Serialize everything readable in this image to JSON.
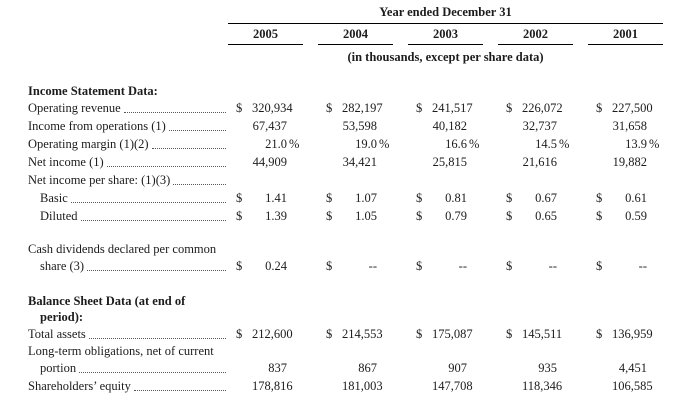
{
  "header": {
    "title": "Year ended December 31",
    "years": [
      "2005",
      "2004",
      "2003",
      "2002",
      "2001"
    ],
    "subtitle": "(in thousands, except per share data)"
  },
  "table": {
    "rows": [
      {
        "type": "section",
        "lines": [
          {
            "text": "Income Statement Data:",
            "indent": false
          }
        ]
      },
      {
        "type": "data",
        "label": "Operating revenue",
        "indent": false,
        "currency": "$",
        "suffix": "",
        "values": [
          "320,934",
          "282,197",
          "241,517",
          "226,072",
          "227,500"
        ]
      },
      {
        "type": "data",
        "label": "Income from operations (1)",
        "indent": false,
        "currency": "",
        "suffix": "",
        "values": [
          "67,437",
          "53,598",
          "40,182",
          "32,737",
          "31,658"
        ]
      },
      {
        "type": "data",
        "label": "Operating margin (1)(2)",
        "indent": false,
        "currency": "",
        "suffix": "%",
        "values": [
          "21.0",
          "19.0",
          "16.6",
          "14.5",
          "13.9"
        ]
      },
      {
        "type": "data",
        "label": "Net income (1)",
        "indent": false,
        "currency": "",
        "suffix": "",
        "values": [
          "44,909",
          "34,421",
          "25,815",
          "21,616",
          "19,882"
        ]
      },
      {
        "type": "data",
        "label": "Net income per share: (1)(3)",
        "indent": false,
        "currency": "",
        "suffix": "",
        "values": []
      },
      {
        "type": "data",
        "label": "Basic",
        "indent": true,
        "currency": "$",
        "suffix": "",
        "values": [
          "1.41",
          "1.07",
          "0.81",
          "0.67",
          "0.61"
        ]
      },
      {
        "type": "data",
        "label": "Diluted",
        "indent": true,
        "currency": "$",
        "suffix": "",
        "values": [
          "1.39",
          "1.05",
          "0.79",
          "0.65",
          "0.59"
        ]
      },
      {
        "type": "spacer",
        "h": 16
      },
      {
        "type": "data",
        "pre": [
          "Cash dividends declared per common"
        ],
        "label": "share (3)",
        "indent": true,
        "currency": "$",
        "suffix": "",
        "values": [
          "0.24",
          "--",
          "--",
          "--",
          "--"
        ]
      },
      {
        "type": "spacer",
        "h": 18
      },
      {
        "type": "section",
        "lines": [
          {
            "text": "Balance Sheet Data (at end of",
            "indent": false
          },
          {
            "text": "period):",
            "indent": true
          }
        ]
      },
      {
        "type": "data",
        "label": "Total assets",
        "indent": false,
        "currency": "$",
        "suffix": "",
        "values": [
          "212,600",
          "214,553",
          "175,087",
          "145,511",
          "136,959"
        ]
      },
      {
        "type": "data",
        "pre": [
          "Long-term obligations, net of current"
        ],
        "label": "portion",
        "indent": true,
        "currency": "",
        "suffix": "",
        "values": [
          "837",
          "867",
          "907",
          "935",
          "4,451"
        ]
      },
      {
        "type": "data",
        "label": "Shareholders’ equity",
        "indent": false,
        "currency": "",
        "suffix": "",
        "values": [
          "178,816",
          "181,003",
          "147,708",
          "118,346",
          "106,585"
        ]
      }
    ]
  }
}
